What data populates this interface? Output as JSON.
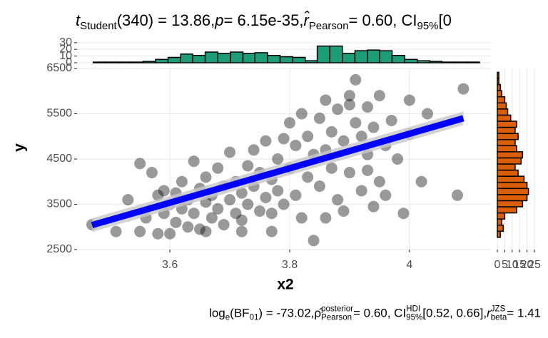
{
  "chart_data": [
    {
      "type": "scatter",
      "title_segments": [
        {
          "text": "t",
          "style": "italic"
        },
        {
          "text": "Student",
          "style": "sub"
        },
        {
          "text": "(340) = 13.86, ",
          "style": "normal"
        },
        {
          "text": "p",
          "style": "italic"
        },
        {
          "text": " = 6.15e-35, ",
          "style": "normal"
        },
        {
          "text": "r̂",
          "style": "italic"
        },
        {
          "text": "Pearson",
          "style": "sub"
        },
        {
          "text": " = 0.60, CI",
          "style": "normal"
        },
        {
          "text": "95%",
          "style": "sub"
        },
        {
          "text": " [0",
          "style": "normal"
        }
      ],
      "caption_segments": [
        {
          "text": "log",
          "style": "normal"
        },
        {
          "text": "e",
          "style": "sub"
        },
        {
          "text": "(BF",
          "style": "normal"
        },
        {
          "text": "01",
          "style": "sub"
        },
        {
          "text": ") = -73.02, ",
          "style": "normal"
        },
        {
          "text": "ρ̂",
          "style": "normal"
        },
        {
          "text": "posterior",
          "style": "sup"
        },
        {
          "text": "Pearson",
          "style": "sub"
        },
        {
          "text": " = 0.60, CI",
          "style": "normal"
        },
        {
          "text": "HDI",
          "style": "sup"
        },
        {
          "text": "95%",
          "style": "sub"
        },
        {
          "text": " [0.52, 0.66], ",
          "style": "normal"
        },
        {
          "text": "r",
          "style": "italic"
        },
        {
          "text": "JZS",
          "style": "sup"
        },
        {
          "text": "beta",
          "style": "sub"
        },
        {
          "text": " = 1.41",
          "style": "normal"
        }
      ],
      "x_label": "x2",
      "y_label": "y",
      "xlim": [
        3.445,
        4.136
      ],
      "ylim": [
        2500,
        6500
      ],
      "xticks": [
        3.6,
        3.8,
        4.0
      ],
      "yticks": [
        2500,
        3500,
        4500,
        5500,
        6500
      ],
      "grid": true,
      "point_color": "#000000",
      "point_opacity": 0.4,
      "x": [
        3.47,
        3.51,
        3.53,
        3.55,
        3.55,
        3.56,
        3.57,
        3.58,
        3.59,
        3.59,
        3.6,
        3.6,
        3.61,
        3.61,
        3.62,
        3.62,
        3.63,
        3.63,
        3.64,
        3.64,
        3.65,
        3.65,
        3.66,
        3.66,
        3.67,
        3.67,
        3.68,
        3.68,
        3.69,
        3.69,
        3.7,
        3.7,
        3.71,
        3.71,
        3.72,
        3.72,
        3.73,
        3.73,
        3.74,
        3.74,
        3.75,
        3.75,
        3.76,
        3.76,
        3.77,
        3.77,
        3.78,
        3.78,
        3.79,
        3.79,
        3.8,
        3.8,
        3.81,
        3.81,
        3.82,
        3.82,
        3.83,
        3.83,
        3.84,
        3.84,
        3.85,
        3.85,
        3.86,
        3.86,
        3.87,
        3.87,
        3.88,
        3.88,
        3.89,
        3.89,
        3.9,
        3.9,
        3.91,
        3.91,
        3.92,
        3.92,
        3.93,
        3.93,
        3.94,
        3.94,
        3.95,
        3.95,
        3.96,
        3.96,
        3.97,
        3.98,
        3.99,
        4.0,
        4.0,
        4.02,
        4.03,
        4.08,
        4.09,
        3.58,
        3.66,
        3.72,
        3.77,
        3.86,
        3.93,
        3.9
      ],
      "values": [
        3050,
        2900,
        3600,
        4400,
        2900,
        3200,
        4200,
        3700,
        3300,
        3800,
        2850,
        3500,
        3100,
        3750,
        3400,
        4000,
        3000,
        3600,
        4450,
        3300,
        3850,
        2950,
        3550,
        4100,
        3200,
        3700,
        3400,
        4300,
        3900,
        3050,
        3600,
        4650,
        3300,
        4000,
        3750,
        3150,
        4350,
        3500,
        3900,
        4700,
        3350,
        4200,
        3650,
        4900,
        4050,
        3300,
        4500,
        3800,
        4950,
        3500,
        4300,
        5300,
        3700,
        4800,
        3200,
        5500,
        4100,
        5000,
        4600,
        2700,
        5400,
        3900,
        4700,
        5800,
        4300,
        5100,
        3600,
        5600,
        4900,
        3350,
        5700,
        4200,
        6250,
        5300,
        3800,
        5000,
        4600,
        5650,
        3450,
        5200,
        4000,
        5900,
        4800,
        3700,
        5350,
        4500,
        3300,
        5050,
        5800,
        4000,
        5500,
        3700,
        6050,
        2850,
        2900,
        2900,
        2900,
        3200,
        4250,
        5900
      ],
      "fit": {
        "color": "#0000ff",
        "band_color": "#c8c8c8",
        "x": [
          3.47,
          4.09
        ],
        "values": [
          3040,
          5400
        ],
        "lower": [
          2890,
          5250
        ],
        "upper": [
          3190,
          5550
        ]
      }
    },
    {
      "type": "histogram",
      "orientation": "vertical",
      "color": "#1b9e77",
      "bins": [
        3.472,
        3.493,
        3.514,
        3.534,
        3.555,
        3.576,
        3.597,
        3.618,
        3.638,
        3.659,
        3.68,
        3.701,
        3.722,
        3.742,
        3.763,
        3.784,
        3.805,
        3.826,
        3.846,
        3.867,
        3.888,
        3.909,
        3.93,
        3.95,
        3.971,
        3.992,
        4.013,
        4.034,
        4.054,
        4.075,
        4.096,
        4.117
      ],
      "values": [
        1,
        1,
        1,
        1,
        2,
        5,
        8,
        13,
        11,
        16,
        14,
        16,
        14,
        15,
        11,
        9,
        8,
        3,
        25,
        25,
        14,
        18,
        19,
        18,
        11,
        5,
        3,
        2,
        1,
        1,
        1
      ],
      "ylim": [
        0,
        32
      ],
      "yticks": [
        0,
        10,
        20,
        30
      ]
    },
    {
      "type": "histogram",
      "orientation": "horizontal",
      "color": "#d95f02",
      "bins": [
        2770,
        2905,
        3040,
        3175,
        3310,
        3445,
        3580,
        3715,
        3850,
        3985,
        4120,
        4255,
        4390,
        4525,
        4660,
        4795,
        4930,
        5065,
        5200,
        5335,
        5470,
        5605,
        5740,
        5875,
        6010,
        6145,
        6280,
        6415
      ],
      "values": [
        2,
        4,
        3,
        5,
        13,
        17,
        20,
        21,
        20,
        18,
        14,
        12,
        16,
        17,
        13,
        12,
        14,
        12,
        13,
        9,
        7,
        6,
        5,
        3,
        2,
        1,
        1
      ],
      "xlim": [
        0,
        25.5
      ],
      "xticks": [
        0,
        5,
        10,
        15,
        20,
        25
      ]
    }
  ]
}
